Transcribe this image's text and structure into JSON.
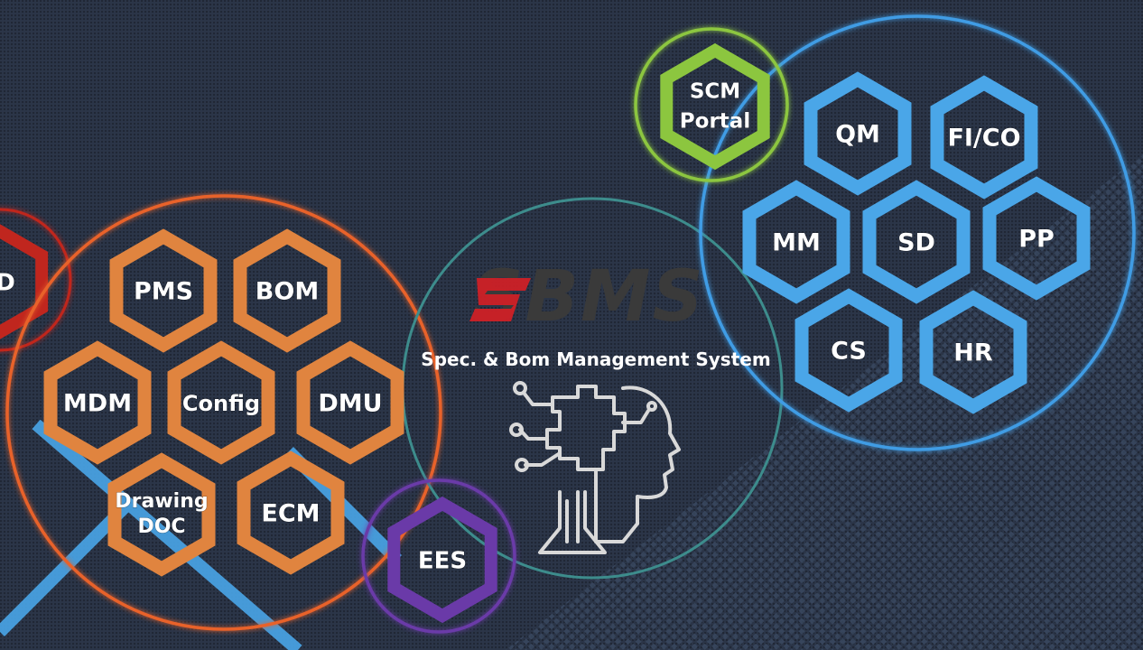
{
  "logo": {
    "text": "SBMS"
  },
  "subtitle": "Spec. & Bom Management System",
  "colors": {
    "orange": "#e0843f",
    "orange_ring": "#e8622a",
    "blue": "#4aa6e8",
    "blue_ring": "#3f9ce4",
    "green": "#8cc63f",
    "purple": "#6a3aa8",
    "teal_ring": "#3d8c8c",
    "red": "#c0261e",
    "logo_red": "#d21f26",
    "logo_dark": "#3a3a3a"
  },
  "clusters": {
    "left_partial": {
      "label": "D"
    },
    "plm": {
      "modules": [
        {
          "id": "pms",
          "label": "PMS"
        },
        {
          "id": "bom",
          "label": "BOM"
        },
        {
          "id": "mdm",
          "label": "MDM"
        },
        {
          "id": "config",
          "label": "Config"
        },
        {
          "id": "dmu",
          "label": "DMU"
        },
        {
          "id": "drawing",
          "label": "Drawing\nDOC",
          "line1": "Drawing",
          "line2": "DOC"
        },
        {
          "id": "ecm",
          "label": "ECM"
        }
      ]
    },
    "erp": {
      "modules": [
        {
          "id": "qm",
          "label": "QM"
        },
        {
          "id": "fico",
          "label": "FI/CO"
        },
        {
          "id": "mm",
          "label": "MM"
        },
        {
          "id": "sd",
          "label": "SD"
        },
        {
          "id": "pp",
          "label": "PP"
        },
        {
          "id": "cs",
          "label": "CS"
        },
        {
          "id": "hr",
          "label": "HR"
        }
      ]
    },
    "scm": {
      "line1": "SCM",
      "line2": "Portal"
    },
    "ees": {
      "label": "EES"
    }
  },
  "icons": {
    "center": "ai-head-circuit-icon"
  }
}
